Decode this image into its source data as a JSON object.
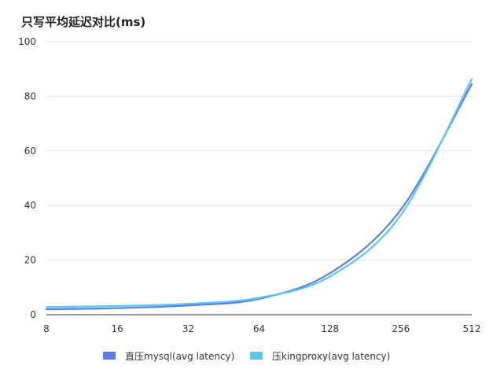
{
  "chart_data": {
    "type": "line",
    "title": "只写平均延迟对比(ms)",
    "xlabel": "",
    "ylabel": "",
    "categories": [
      "8",
      "16",
      "32",
      "64",
      "128",
      "256",
      "512"
    ],
    "ylim": [
      0,
      100
    ],
    "yticks": [
      "0",
      "20",
      "40",
      "60",
      "80",
      "100"
    ],
    "grid": true,
    "legend_position": "bottom",
    "series": [
      {
        "name": "直压mysql(avg latency)",
        "color": "#5b7be9",
        "values": [
          2.0,
          2.4,
          3.4,
          5.8,
          15.2,
          38.5,
          84.5
        ]
      },
      {
        "name": "压kingproxy(avg latency)",
        "color": "#5bc5f0",
        "values": [
          2.8,
          3.2,
          4.0,
          6.2,
          14.0,
          36.5,
          86.3
        ]
      }
    ]
  }
}
